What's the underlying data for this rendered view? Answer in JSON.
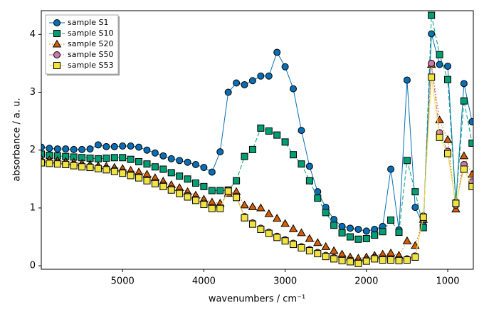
{
  "chart_data": {
    "type": "line",
    "xlabel": "wavenumbers / cm⁻¹",
    "ylabel": "absorbance / a. u.",
    "x": [
      6000,
      5900,
      5800,
      5700,
      5600,
      5500,
      5400,
      5300,
      5200,
      5100,
      5000,
      4900,
      4800,
      4700,
      4600,
      4500,
      4400,
      4300,
      4200,
      4100,
      4000,
      3900,
      3800,
      3700,
      3600,
      3500,
      3400,
      3300,
      3200,
      3100,
      3000,
      2900,
      2800,
      2700,
      2600,
      2500,
      2400,
      2300,
      2200,
      2100,
      2000,
      1900,
      1800,
      1700,
      1600,
      1500,
      1400,
      1300,
      1200,
      1100,
      1000,
      900,
      800,
      700
    ],
    "xlim": [
      6000,
      685
    ],
    "ylim": [
      -0.06,
      4.41
    ],
    "xticks": [
      5000,
      4000,
      3000,
      2000,
      1000
    ],
    "yticks": [
      0,
      1,
      2,
      3,
      4
    ],
    "legend": "upper left",
    "series": [
      {
        "name": "sample S1",
        "color": "#0a6eb4",
        "marker": "circle",
        "linestyle": "solid",
        "values": [
          2.05,
          2.03,
          2.02,
          2.02,
          2.01,
          2.01,
          2.02,
          2.09,
          2.06,
          2.06,
          2.07,
          2.07,
          2.05,
          2.0,
          1.95,
          1.9,
          1.85,
          1.82,
          1.79,
          1.75,
          1.7,
          1.62,
          1.97,
          3.0,
          3.16,
          3.13,
          3.2,
          3.28,
          3.28,
          3.69,
          3.44,
          3.06,
          2.34,
          1.72,
          1.28,
          1.01,
          0.8,
          0.68,
          0.65,
          0.63,
          0.6,
          0.63,
          0.68,
          1.67,
          0.62,
          3.21,
          1.01,
          0.7,
          4.01,
          3.48,
          3.45,
          1.1,
          3.15,
          2.49
        ]
      },
      {
        "name": "sample S10",
        "color": "#009e73",
        "marker": "square",
        "linestyle": "dashed",
        "values": [
          1.93,
          1.91,
          1.9,
          1.89,
          1.88,
          1.87,
          1.86,
          1.85,
          1.86,
          1.87,
          1.87,
          1.84,
          1.8,
          1.76,
          1.71,
          1.67,
          1.61,
          1.55,
          1.5,
          1.43,
          1.37,
          1.3,
          1.3,
          1.31,
          1.47,
          1.89,
          2.01,
          2.38,
          2.33,
          2.26,
          2.14,
          1.92,
          1.76,
          1.47,
          1.17,
          0.92,
          0.7,
          0.57,
          0.5,
          0.46,
          0.47,
          0.53,
          0.59,
          0.79,
          0.58,
          1.82,
          1.28,
          0.66,
          4.33,
          3.65,
          3.22,
          1.08,
          2.85,
          2.12
        ]
      },
      {
        "name": "sample S20",
        "color": "#d55e00",
        "marker": "triangle",
        "linestyle": "dotted",
        "values": [
          1.85,
          1.83,
          1.82,
          1.8,
          1.79,
          1.77,
          1.75,
          1.73,
          1.72,
          1.7,
          1.68,
          1.65,
          1.62,
          1.58,
          1.52,
          1.46,
          1.4,
          1.35,
          1.28,
          1.22,
          1.15,
          1.1,
          1.08,
          1.25,
          1.28,
          1.05,
          1.02,
          1.0,
          0.9,
          0.82,
          0.73,
          0.64,
          0.57,
          0.47,
          0.4,
          0.33,
          0.26,
          0.2,
          0.15,
          0.13,
          0.15,
          0.18,
          0.2,
          0.22,
          0.18,
          0.43,
          0.35,
          0.8,
          3.48,
          2.52,
          2.18,
          0.98,
          1.9,
          1.58
        ]
      },
      {
        "name": "sample S50",
        "color": "#cc79a7",
        "marker": "circle",
        "linestyle": "dashdot",
        "values": [
          1.8,
          1.79,
          1.78,
          1.77,
          1.75,
          1.73,
          1.72,
          1.7,
          1.68,
          1.65,
          1.62,
          1.58,
          1.54,
          1.49,
          1.44,
          1.39,
          1.33,
          1.27,
          1.21,
          1.15,
          1.08,
          1.01,
          1.01,
          1.31,
          1.2,
          0.85,
          0.74,
          0.65,
          0.58,
          0.51,
          0.45,
          0.39,
          0.33,
          0.28,
          0.23,
          0.18,
          0.14,
          0.11,
          0.09,
          0.06,
          0.1,
          0.14,
          0.12,
          0.12,
          0.11,
          0.12,
          0.17,
          0.86,
          3.5,
          2.3,
          1.98,
          1.05,
          1.75,
          1.45
        ]
      },
      {
        "name": "sample S53",
        "color": "#f0e442",
        "marker": "square",
        "linestyle": "solid",
        "values": [
          1.78,
          1.77,
          1.76,
          1.75,
          1.73,
          1.71,
          1.7,
          1.68,
          1.66,
          1.63,
          1.6,
          1.56,
          1.52,
          1.47,
          1.42,
          1.37,
          1.31,
          1.25,
          1.19,
          1.13,
          1.06,
          0.99,
          0.99,
          1.29,
          1.18,
          0.83,
          0.72,
          0.63,
          0.56,
          0.49,
          0.43,
          0.37,
          0.31,
          0.26,
          0.21,
          0.16,
          0.12,
          0.09,
          0.07,
          0.04,
          0.08,
          0.12,
          0.1,
          0.1,
          0.09,
          0.1,
          0.15,
          0.84,
          3.26,
          2.22,
          1.94,
          1.08,
          1.67,
          1.37
        ]
      }
    ]
  }
}
